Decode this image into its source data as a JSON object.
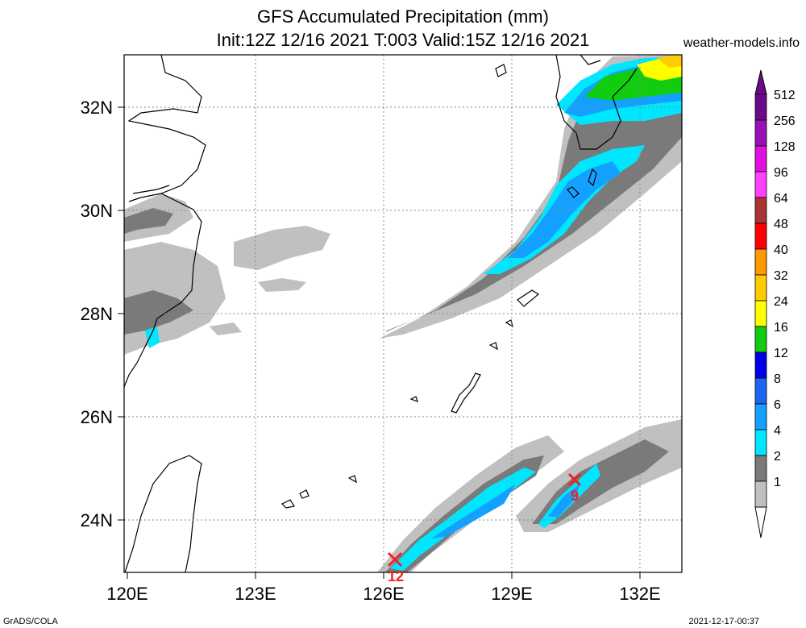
{
  "title": {
    "line1": "GFS Accumulated Precipitation (mm)",
    "line2": "Init:12Z 12/16 2021 T:003 Valid:15Z 12/16 2021"
  },
  "site": "weather-models.info",
  "footer": {
    "left": "GrADS/COLA",
    "right": "2021-12-17-00:37"
  },
  "map": {
    "lat_labels": [
      "32N",
      "30N",
      "28N",
      "26N",
      "24N"
    ],
    "lon_labels": [
      "120E",
      "123E",
      "126E",
      "129E",
      "132E"
    ],
    "extent": {
      "lon_min": 120,
      "lon_max": 133,
      "lat_min": 23,
      "lat_max": 33
    },
    "markers": [
      {
        "label": "12",
        "lon": 126.4,
        "lat": 23.3
      },
      {
        "label": "9",
        "lon": 130.6,
        "lat": 24.8
      }
    ]
  },
  "colorbar": {
    "levels": [
      "512",
      "256",
      "128",
      "96",
      "64",
      "48",
      "40",
      "32",
      "24",
      "16",
      "12",
      "8",
      "6",
      "4",
      "2",
      "1"
    ],
    "colors": {
      "c512": "#6a0a8a",
      "c256": "#9a10b8",
      "c128": "#e010e0",
      "c96": "#ff40ff",
      "c64": "#aa3333",
      "c48": "#ff0000",
      "c40": "#ff9900",
      "c32": "#ffcc00",
      "c24": "#ffff00",
      "c16": "#11cc11",
      "c12": "#0000e6",
      "c8": "#1a66f0",
      "c6": "#14a0ff",
      "c4": "#00e6ff",
      "c2": "#7a7a7a",
      "c1": "#c0c0c0"
    }
  }
}
